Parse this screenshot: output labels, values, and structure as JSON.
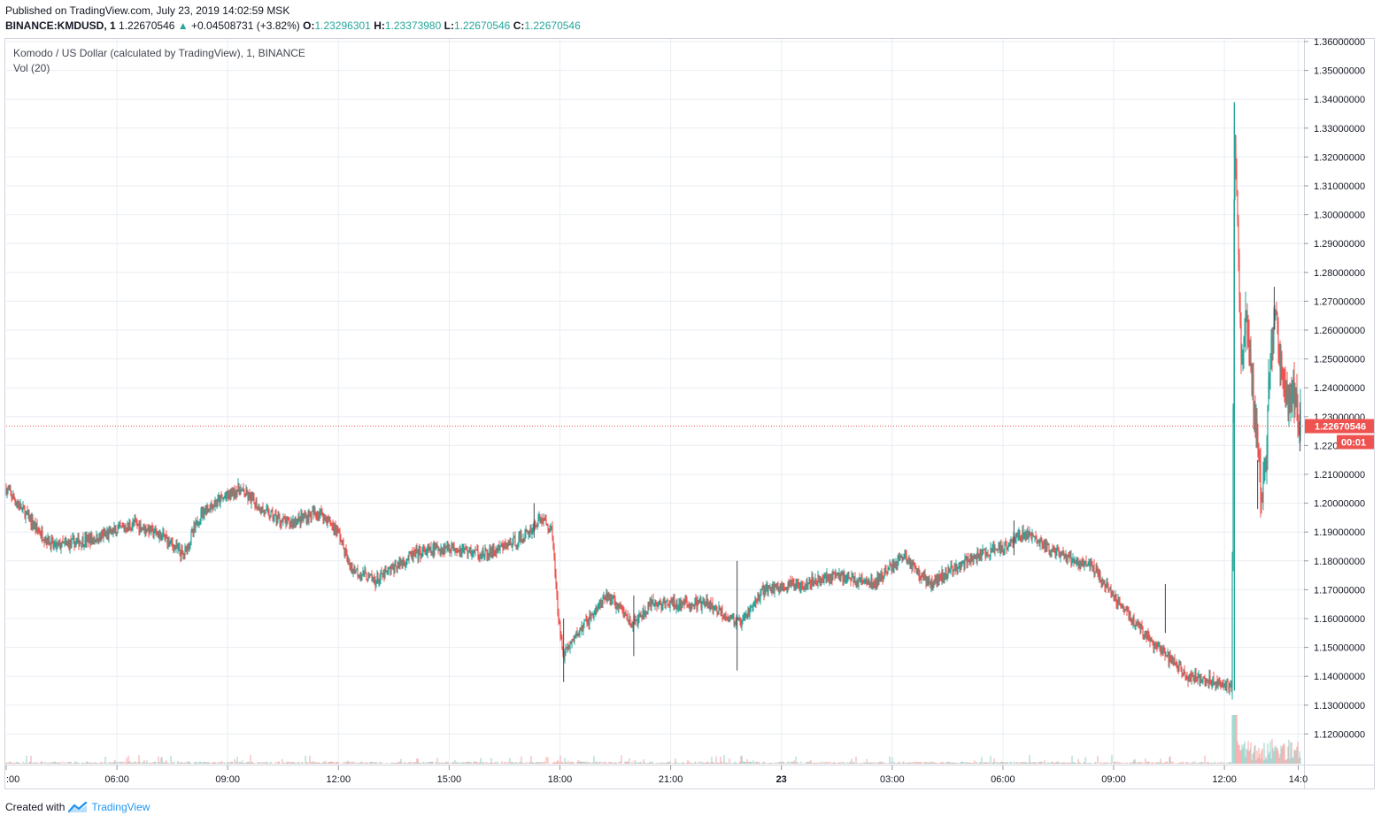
{
  "header": {
    "published": "Published on TradingView.com, July 23, 2019 14:02:59 MSK",
    "symbol": "BINANCE:KMDUSD, 1",
    "last_price": "1.22670546",
    "change": "+0.04508731 (+3.82%)",
    "open_label": "O:",
    "open": "1.23296301",
    "high_label": "H:",
    "high": "1.23373980",
    "low_label": "L:",
    "low": "1.22670546",
    "close_label": "C:",
    "close": "1.22670546"
  },
  "legend": {
    "title": "Komodo / US Dollar (calculated by TradingView), 1, BINANCE",
    "volume": "Vol (20)"
  },
  "footer": {
    "created_prefix": "Created with",
    "brand": "TradingView"
  },
  "colors": {
    "up": "#26a69a",
    "down": "#ef5350",
    "price_line": "#ef5350",
    "grid": "#e9eef3",
    "brand": "#2196f3"
  },
  "chart_data": {
    "type": "candlestick",
    "title": "Komodo / US Dollar (calculated by TradingView), 1, BINANCE",
    "y_axis": {
      "min": 1.11,
      "max": 1.36,
      "ticks": [
        "1.36000000",
        "1.35000000",
        "1.34000000",
        "1.33000000",
        "1.32000000",
        "1.31000000",
        "1.30000000",
        "1.29000000",
        "1.28000000",
        "1.27000000",
        "1.26000000",
        "1.25000000",
        "1.24000000",
        "1.23000000",
        "1.22000000",
        "1.21000000",
        "1.20000000",
        "1.19000000",
        "1.18000000",
        "1.17000000",
        "1.16000000",
        "1.15000000",
        "1.14000000",
        "1.13000000",
        "1.12000000"
      ]
    },
    "x_axis": {
      "min_hour": 3,
      "max_hour": 38.08,
      "ticks": [
        {
          "hour": 3,
          "label": ":00"
        },
        {
          "hour": 6,
          "label": "06:00"
        },
        {
          "hour": 9,
          "label": "09:00"
        },
        {
          "hour": 12,
          "label": "12:00"
        },
        {
          "hour": 15,
          "label": "15:00"
        },
        {
          "hour": 18,
          "label": "18:00"
        },
        {
          "hour": 21,
          "label": "21:00"
        },
        {
          "hour": 24,
          "label": "23"
        },
        {
          "hour": 27,
          "label": "03:00"
        },
        {
          "hour": 30,
          "label": "06:00"
        },
        {
          "hour": 33,
          "label": "09:00"
        },
        {
          "hour": 36,
          "label": "12:00"
        },
        {
          "hour": 38,
          "label": "14:0"
        }
      ]
    },
    "current_price": 1.22670546,
    "current_price_label": "1.22670546",
    "countdown_label": "00:01",
    "volume_indicator": "Vol (20)",
    "price_path": [
      {
        "hour": 3.0,
        "price": 1.205
      },
      {
        "hour": 3.9,
        "price": 1.19
      },
      {
        "hour": 4.3,
        "price": 1.185
      },
      {
        "hour": 5.5,
        "price": 1.188
      },
      {
        "hour": 6.5,
        "price": 1.193
      },
      {
        "hour": 7.3,
        "price": 1.188
      },
      {
        "hour": 7.8,
        "price": 1.182
      },
      {
        "hour": 8.3,
        "price": 1.197
      },
      {
        "hour": 9.3,
        "price": 1.205
      },
      {
        "hour": 10.0,
        "price": 1.197
      },
      {
        "hour": 10.6,
        "price": 1.193
      },
      {
        "hour": 11.5,
        "price": 1.197
      },
      {
        "hour": 12.0,
        "price": 1.19
      },
      {
        "hour": 12.3,
        "price": 1.178
      },
      {
        "hour": 13.0,
        "price": 1.173
      },
      {
        "hour": 14.0,
        "price": 1.182
      },
      {
        "hour": 15.0,
        "price": 1.185
      },
      {
        "hour": 16.0,
        "price": 1.182
      },
      {
        "hour": 17.0,
        "price": 1.188
      },
      {
        "hour": 17.5,
        "price": 1.195
      },
      {
        "hour": 17.8,
        "price": 1.19
      },
      {
        "hour": 17.95,
        "price": 1.16
      },
      {
        "hour": 18.1,
        "price": 1.148
      },
      {
        "hour": 18.6,
        "price": 1.157
      },
      {
        "hour": 19.3,
        "price": 1.168
      },
      {
        "hour": 20.0,
        "price": 1.158
      },
      {
        "hour": 20.5,
        "price": 1.165
      },
      {
        "hour": 21.2,
        "price": 1.165
      },
      {
        "hour": 22.0,
        "price": 1.165
      },
      {
        "hour": 22.9,
        "price": 1.158
      },
      {
        "hour": 23.5,
        "price": 1.17
      },
      {
        "hour": 24.5,
        "price": 1.172
      },
      {
        "hour": 25.5,
        "price": 1.175
      },
      {
        "hour": 26.5,
        "price": 1.172
      },
      {
        "hour": 27.3,
        "price": 1.182
      },
      {
        "hour": 28.0,
        "price": 1.172
      },
      {
        "hour": 29.0,
        "price": 1.18
      },
      {
        "hour": 30.0,
        "price": 1.185
      },
      {
        "hour": 30.6,
        "price": 1.19
      },
      {
        "hour": 31.5,
        "price": 1.182
      },
      {
        "hour": 32.4,
        "price": 1.178
      },
      {
        "hour": 33.0,
        "price": 1.168
      },
      {
        "hour": 34.0,
        "price": 1.152
      },
      {
        "hour": 35.0,
        "price": 1.14
      },
      {
        "hour": 36.0,
        "price": 1.138
      },
      {
        "hour": 36.2,
        "price": 1.135
      },
      {
        "hour": 36.27,
        "price": 1.33
      },
      {
        "hour": 36.35,
        "price": 1.3
      },
      {
        "hour": 36.45,
        "price": 1.25
      },
      {
        "hour": 36.6,
        "price": 1.265
      },
      {
        "hour": 36.9,
        "price": 1.22
      },
      {
        "hour": 37.0,
        "price": 1.2
      },
      {
        "hour": 37.15,
        "price": 1.22
      },
      {
        "hour": 37.2,
        "price": 1.24
      },
      {
        "hour": 37.35,
        "price": 1.27
      },
      {
        "hour": 37.5,
        "price": 1.248
      },
      {
        "hour": 37.7,
        "price": 1.235
      },
      {
        "hour": 37.85,
        "price": 1.24
      },
      {
        "hour": 38.0,
        "price": 1.23
      },
      {
        "hour": 38.08,
        "price": 1.2267
      }
    ],
    "spikes": [
      {
        "hour": 17.3,
        "high": 1.2,
        "low": 1.188
      },
      {
        "hour": 18.1,
        "high": 1.16,
        "low": 1.138
      },
      {
        "hour": 22.8,
        "high": 1.18,
        "low": 1.142
      },
      {
        "hour": 20.0,
        "high": 1.168,
        "low": 1.147
      },
      {
        "hour": 30.3,
        "high": 1.194,
        "low": 1.182
      },
      {
        "hour": 34.4,
        "high": 1.172,
        "low": 1.155
      },
      {
        "hour": 36.27,
        "high": 1.339,
        "low": 1.32
      },
      {
        "hour": 36.9,
        "high": 1.215,
        "low": 1.198
      },
      {
        "hour": 37.35,
        "high": 1.275,
        "low": 1.26
      },
      {
        "hour": 38.05,
        "high": 1.235,
        "low": 1.218
      }
    ]
  }
}
